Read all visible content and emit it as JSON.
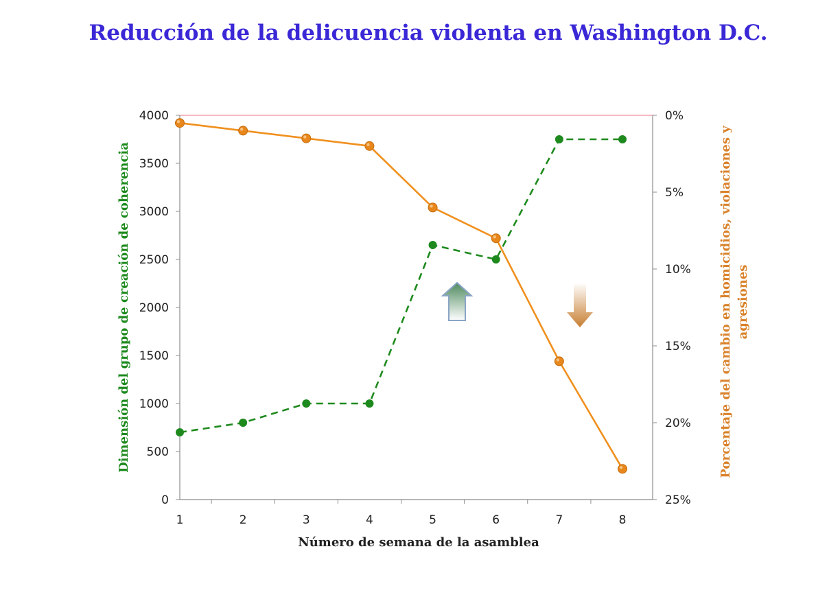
{
  "chart_data": {
    "type": "line",
    "title": "Reducción de la delicuencia violenta en Washington D.C.",
    "xlabel": "Número de semana de la asamblea",
    "ylabel_left": "Dimensión del grupo de creación de coherencia",
    "ylabel_right_lines": [
      "Porcentaje del cambio en homicidios, violaciones y",
      "agresiones"
    ],
    "x": [
      1,
      2,
      3,
      4,
      5,
      6,
      7,
      8
    ],
    "ylim_left": [
      0,
      4000
    ],
    "ylim_right": [
      0,
      25
    ],
    "right_axis_inverted": true,
    "left_ticks": [
      "0",
      "500",
      "1000",
      "1500",
      "2000",
      "2500",
      "3000",
      "3500",
      "4000"
    ],
    "right_ticks": [
      "0%",
      "5%",
      "10%",
      "15%",
      "20%",
      "25%"
    ],
    "x_ticks": [
      "1",
      "2",
      "3",
      "4",
      "5",
      "6",
      "7",
      "8"
    ],
    "grid": false,
    "legend": "none",
    "series": [
      {
        "axis": "left",
        "style": "dashed",
        "color": "#1e8a1e",
        "values": [
          700,
          800,
          1000,
          1000,
          2650,
          2500,
          3750,
          3750
        ]
      },
      {
        "axis": "right",
        "style": "solid",
        "color": "#f0901e",
        "values": [
          0.5,
          1.0,
          1.5,
          2.0,
          6.0,
          8.0,
          16.0,
          23.0
        ]
      }
    ],
    "annotations": [
      {
        "shape": "arrow-up",
        "color": "#3f7a56"
      },
      {
        "shape": "arrow-down",
        "color": "#c98235"
      }
    ],
    "colors": {
      "title": "#3a28d6",
      "left_axis_title": "#1e8a1e",
      "right_axis_title": "#d9822b",
      "top_line": "#f4a3b0",
      "axis": "#8c8c8c"
    }
  }
}
